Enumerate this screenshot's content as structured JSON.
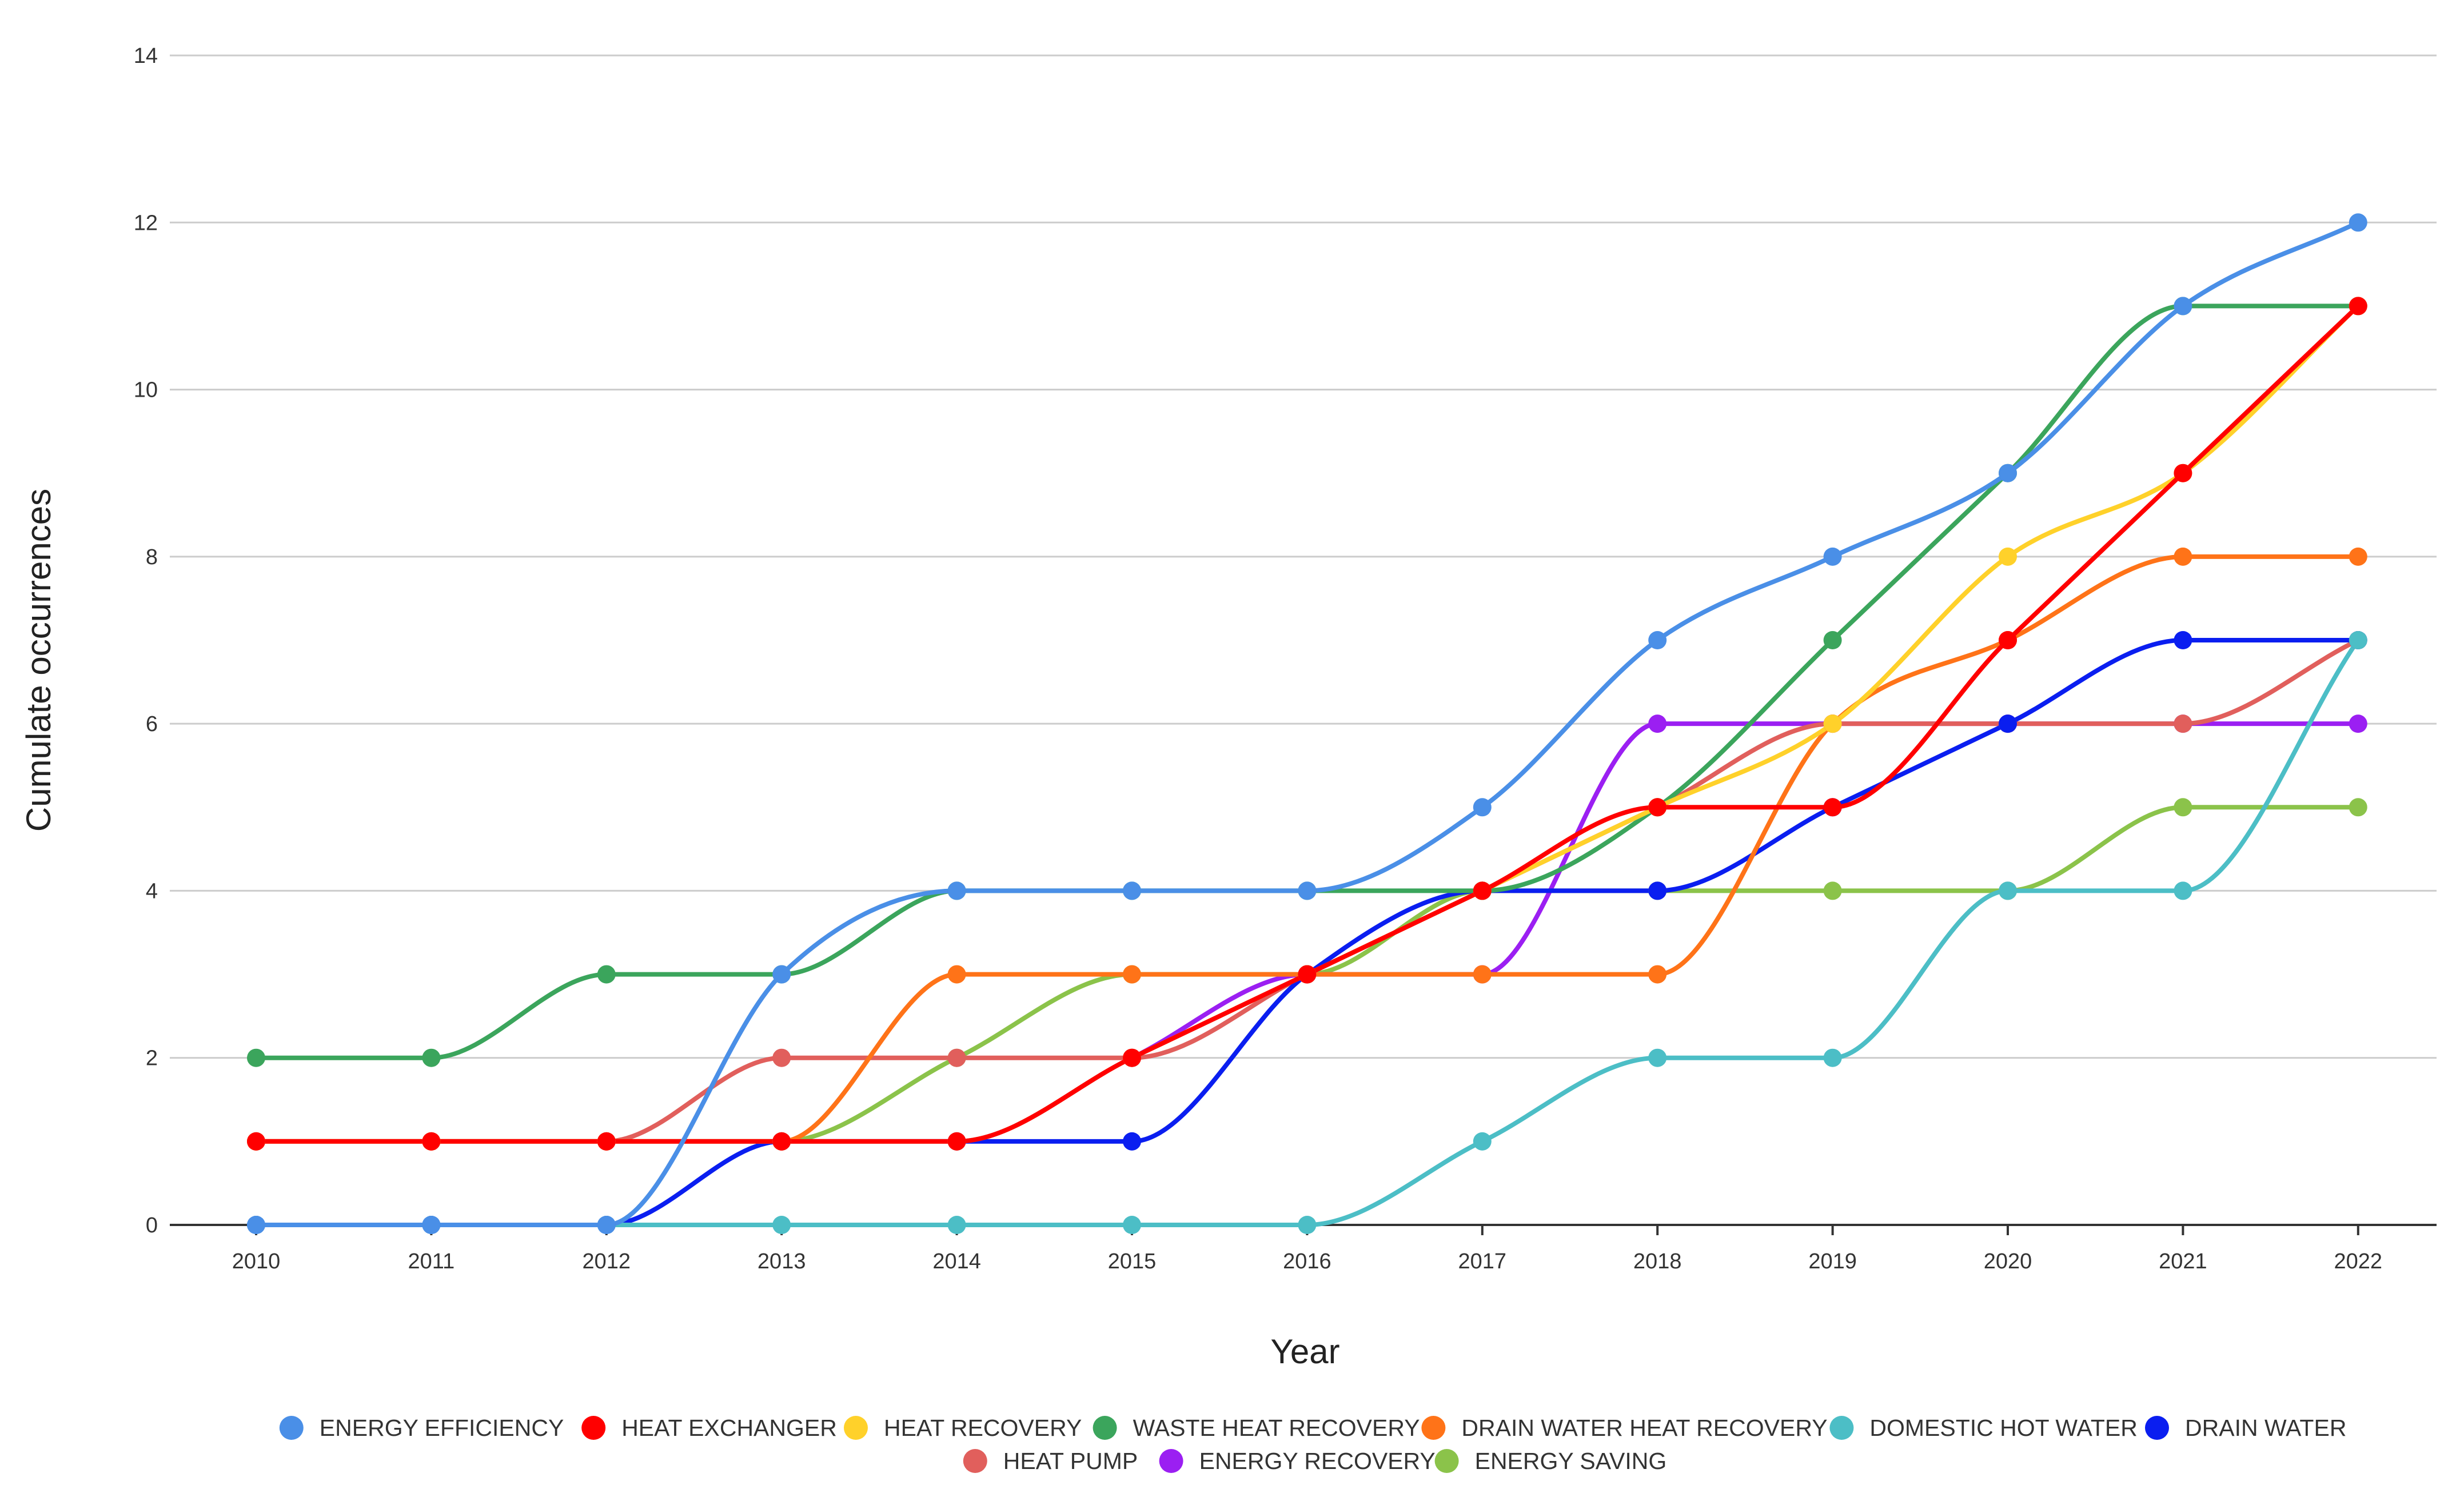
{
  "chart_data": {
    "type": "line",
    "smooth": true,
    "title": "",
    "xlabel": "Year",
    "ylabel": "Cumulate occurrences",
    "x": [
      "2010",
      "2011",
      "2012",
      "2013",
      "2014",
      "2015",
      "2016",
      "2017",
      "2018",
      "2019",
      "2020",
      "2021",
      "2022"
    ],
    "ylim": [
      0,
      14
    ],
    "yticks": [
      0,
      2,
      4,
      6,
      8,
      10,
      12,
      14
    ],
    "ytick_labels": [
      "0",
      "2",
      "4",
      "6",
      "8",
      "10",
      "12",
      "14"
    ],
    "grid": true,
    "legend_position": "bottom",
    "series": [
      {
        "name": "ENERGY EFFICIENCY",
        "color": "#4a8fe7",
        "values": [
          0,
          0,
          0,
          3,
          4,
          4,
          4,
          5,
          7,
          8,
          9,
          11,
          12
        ]
      },
      {
        "name": "HEAT EXCHANGER",
        "color": "#ff0000",
        "values": [
          1,
          1,
          1,
          1,
          1,
          2,
          3,
          4,
          5,
          5,
          7,
          9,
          11
        ]
      },
      {
        "name": "HEAT RECOVERY",
        "color": "#ffd12a",
        "values": [
          1,
          1,
          1,
          1,
          1,
          2,
          3,
          4,
          5,
          6,
          8,
          9,
          11
        ]
      },
      {
        "name": "WASTE HEAT RECOVERY",
        "color": "#3ba55c",
        "values": [
          2,
          2,
          3,
          3,
          4,
          4,
          4,
          4,
          5,
          7,
          9,
          11,
          11
        ]
      },
      {
        "name": "DRAIN WATER HEAT RECOVERY",
        "color": "#ff7318",
        "values": [
          1,
          1,
          1,
          1,
          3,
          3,
          3,
          3,
          3,
          6,
          7,
          8,
          8
        ]
      },
      {
        "name": "DOMESTIC HOT WATER",
        "color": "#4cbec6",
        "values": [
          0,
          0,
          0,
          0,
          0,
          0,
          0,
          1,
          2,
          2,
          4,
          4,
          7
        ]
      },
      {
        "name": "DRAIN WATER",
        "color": "#0a1ef0",
        "values": [
          0,
          0,
          0,
          1,
          1,
          1,
          3,
          4,
          4,
          5,
          6,
          7,
          7
        ]
      },
      {
        "name": "HEAT PUMP",
        "color": "#e15f5c",
        "values": [
          1,
          1,
          1,
          2,
          2,
          2,
          3,
          4,
          5,
          6,
          6,
          6,
          7
        ]
      },
      {
        "name": "ENERGY RECOVERY",
        "color": "#9b1ff2",
        "values": [
          1,
          1,
          1,
          1,
          1,
          2,
          3,
          3,
          6,
          6,
          6,
          6,
          6
        ]
      },
      {
        "name": "ENERGY SAVING",
        "color": "#8bc34a",
        "values": [
          1,
          1,
          1,
          1,
          2,
          3,
          3,
          4,
          4,
          4,
          4,
          5,
          5
        ]
      }
    ]
  }
}
